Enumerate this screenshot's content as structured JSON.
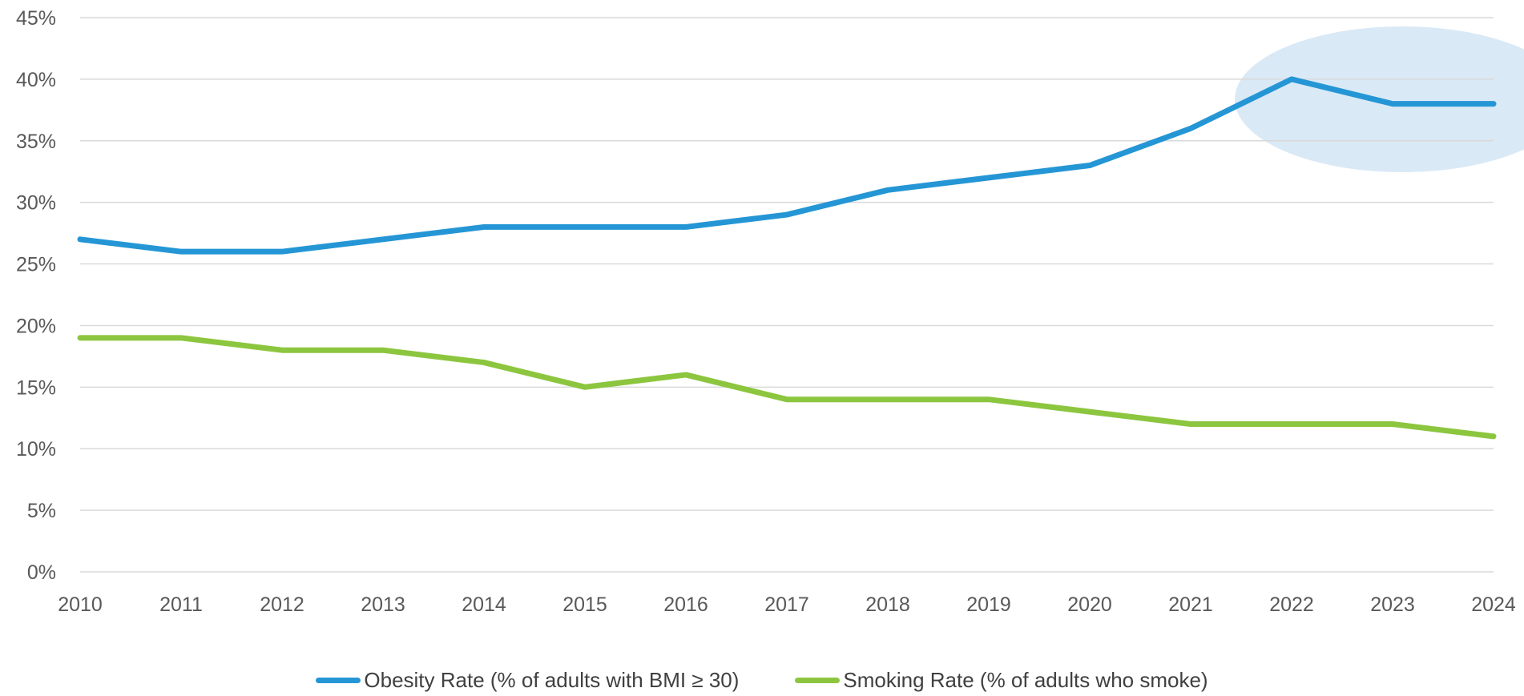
{
  "chart_data": {
    "type": "line",
    "title": "",
    "xlabel": "",
    "ylabel": "",
    "x": [
      "2010",
      "2011",
      "2012",
      "2013",
      "2014",
      "2015",
      "2016",
      "2017",
      "2018",
      "2019",
      "2020",
      "2021",
      "2022",
      "2023",
      "2024"
    ],
    "ylim": [
      0,
      45
    ],
    "yticks": [
      "0%",
      "5%",
      "10%",
      "15%",
      "20%",
      "25%",
      "30%",
      "35%",
      "40%",
      "45%"
    ],
    "grid": true,
    "legend_position": "bottom",
    "highlight": {
      "x_range": [
        "2021",
        "2024"
      ],
      "color": "#dae9f6"
    },
    "series": [
      {
        "name": "Obesity Rate (% of adults with BMI ≥ 30)",
        "color": "#2596d5",
        "values": [
          27,
          26,
          26,
          27,
          28,
          28,
          28,
          29,
          31,
          32,
          33,
          36,
          40,
          38,
          38
        ]
      },
      {
        "name": "Smoking Rate (% of adults who smoke)",
        "color": "#8cc63f",
        "values": [
          19,
          19,
          18,
          18,
          17,
          15,
          16,
          14,
          14,
          14,
          13,
          12,
          12,
          12,
          11
        ]
      }
    ]
  }
}
